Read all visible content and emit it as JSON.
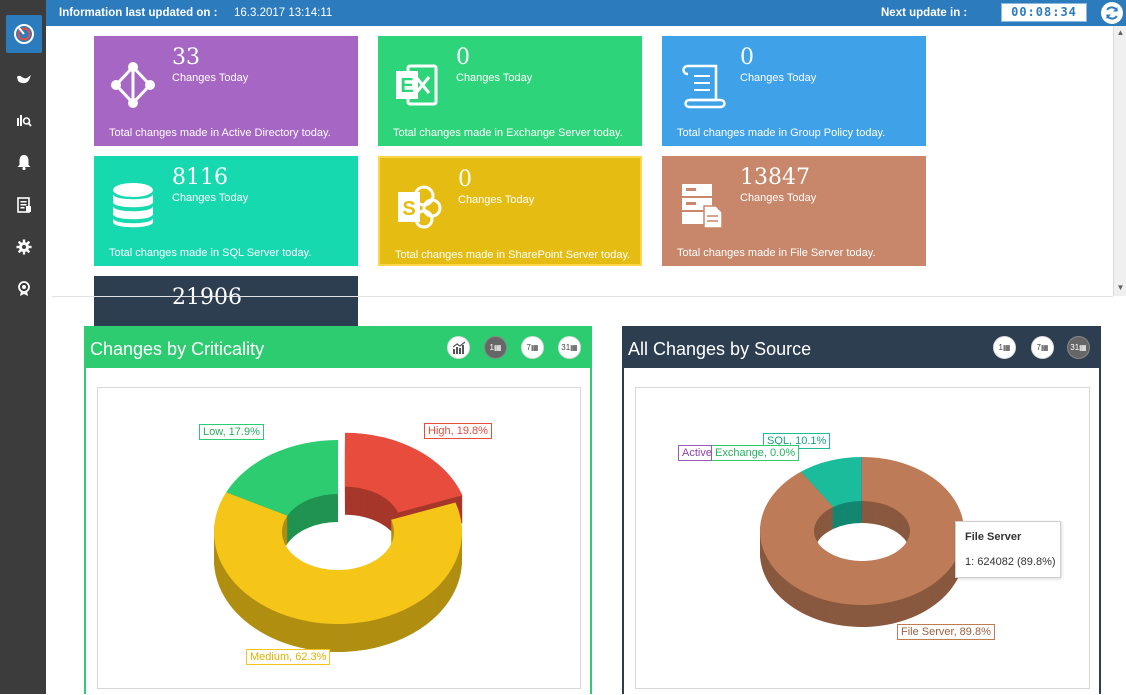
{
  "topbar": {
    "updated_label": "Information last updated on :",
    "updated_value": "16.3.2017 13:14:11",
    "next_label": "Next update in :",
    "countdown": "00:08:34"
  },
  "sidebar": {
    "items": [
      {
        "icon": "dashboard-icon",
        "active": true
      },
      {
        "icon": "bird-icon"
      },
      {
        "icon": "analytics-search-icon"
      },
      {
        "icon": "bell-icon"
      },
      {
        "icon": "report-icon"
      },
      {
        "icon": "gear-icon"
      },
      {
        "icon": "badge-icon"
      }
    ]
  },
  "tiles": [
    {
      "count": "33",
      "sub": "Changes Today",
      "desc": "Total changes made in Active Directory today.",
      "color": "#a666c4",
      "icon": "active-directory-icon"
    },
    {
      "count": "0",
      "sub": "Changes Today",
      "desc": "Total changes made in Exchange Server today.",
      "color": "#2ed47a",
      "icon": "exchange-icon"
    },
    {
      "count": "0",
      "sub": "Changes Today",
      "desc": "Total changes made in Group Policy today.",
      "color": "#3fa2e8",
      "icon": "group-policy-scroll-icon"
    },
    {
      "count": "8116",
      "sub": "Changes Today",
      "desc": "Total changes made in SQL Server today.",
      "color": "#17d9b0",
      "icon": "database-icon"
    },
    {
      "count": "0",
      "sub": "Changes Today",
      "desc": "Total changes made in SharePoint Server today.",
      "color": "#e5bd12",
      "icon": "sharepoint-icon"
    },
    {
      "count": "13847",
      "sub": "Changes Today",
      "desc": "Total changes made in File Server today.",
      "color": "#c8876a",
      "icon": "file-server-icon"
    },
    {
      "count": "21906",
      "color": "#2c3e50"
    }
  ],
  "panels": {
    "criticality": {
      "title": "Changes by Criticality",
      "color": "#2ecc71",
      "buttons": [
        "trend-chart-icon",
        "1-day-icon",
        "7-days-icon",
        "31-days-icon"
      ],
      "button_labels": [
        "",
        "1",
        "7",
        "31"
      ]
    },
    "source": {
      "title": "All Changes by Source",
      "color": "#2c3e50",
      "buttons": [
        "1-day-icon",
        "7-days-icon",
        "31-days-icon"
      ],
      "button_labels": [
        "1",
        "7",
        "31"
      ]
    }
  },
  "chart_data": [
    {
      "type": "pie",
      "title": "Changes by Criticality",
      "categories": [
        "High",
        "Medium",
        "Low"
      ],
      "values": [
        19.8,
        62.3,
        17.9
      ],
      "labels": [
        "High, 19.8%",
        "Medium, 62.3%",
        "Low, 17.9%"
      ],
      "colors": [
        "#e74c3c",
        "#f5c518",
        "#2ecc71"
      ],
      "donut": true
    },
    {
      "type": "pie",
      "title": "All Changes by Source",
      "categories": [
        "File Server",
        "SQL",
        "Exchange",
        "Active"
      ],
      "values": [
        89.8,
        10.1,
        0.0,
        0.1
      ],
      "labels": [
        "File Server, 89.8%",
        "SQL, 10.1%",
        "Exchange, 0.0%",
        "Active"
      ],
      "colors": [
        "#be7b57",
        "#1abc9c",
        "#2ecc71",
        "#9b59b6"
      ],
      "donut": true,
      "tooltip": {
        "title": "File Server",
        "value": "1: 624082 (89.8%)"
      }
    }
  ]
}
